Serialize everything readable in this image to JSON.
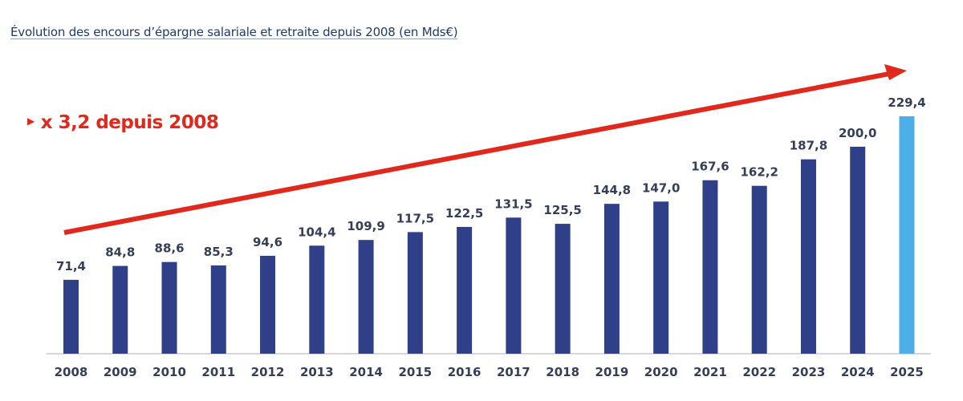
{
  "chart_data": {
    "type": "bar",
    "title": "Évolution des encours d’épargne salariale et retraite depuis 2008 (en Mds€)",
    "annotation": "x 3,2 depuis 2008",
    "xlabel": "",
    "ylabel": "",
    "ylim": [
      0,
      229.4
    ],
    "grid": false,
    "categories": [
      "2008",
      "2009",
      "2010",
      "2011",
      "2012",
      "2013",
      "2014",
      "2015",
      "2016",
      "2017",
      "2018",
      "2019",
      "2020",
      "2021",
      "2022",
      "2023",
      "2024",
      "2025"
    ],
    "values": [
      71.4,
      84.8,
      88.6,
      85.3,
      94.6,
      104.4,
      109.9,
      117.5,
      122.5,
      131.5,
      125.5,
      144.8,
      147.0,
      167.6,
      162.2,
      187.8,
      200.0,
      229.4
    ],
    "value_labels": [
      "71,4",
      "84,8",
      "88,6",
      "85,3",
      "94,6",
      "104,4",
      "109,9",
      "117,5",
      "122,5",
      "131,5",
      "125,5",
      "144,8",
      "147,0",
      "167,6",
      "162,2",
      "187,8",
      "200,0",
      "229,4"
    ],
    "colors": {
      "bar": "#2f3f88",
      "highlight_bar": "#4eaee8",
      "arrow": "#e0281c",
      "text": "#343e56"
    }
  }
}
